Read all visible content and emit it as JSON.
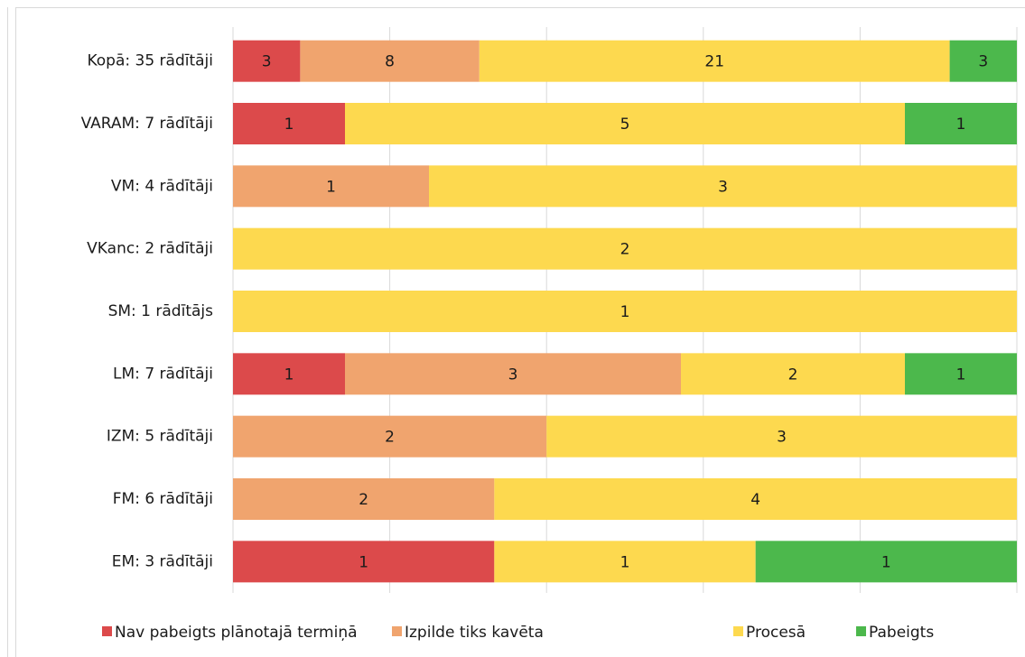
{
  "chart_data": {
    "type": "stacked_bar_100",
    "categories": [
      "Kopā: 35 rādītāji",
      "VARAM: 7 rādītāji",
      "VM: 4 rādītāji",
      "VKanc: 2 rādītāji",
      "SM: 1 rādītājs",
      "LM: 7 rādītāji",
      "IZM: 5 rādītāji",
      "FM: 6 rādītāji",
      "EM: 3 rādītāji"
    ],
    "series": [
      {
        "name": "Nav pabeigts plānotajā termiņā",
        "color": "#dc4a4b",
        "values": [
          3,
          1,
          0,
          0,
          0,
          1,
          0,
          0,
          1
        ]
      },
      {
        "name": "Izpilde tiks kavēta",
        "color": "#f0a46e",
        "values": [
          8,
          0,
          1,
          0,
          0,
          3,
          2,
          2,
          0
        ]
      },
      {
        "name": "Procesā",
        "color": "#fdd94f",
        "values": [
          21,
          5,
          3,
          2,
          1,
          2,
          3,
          4,
          1
        ]
      },
      {
        "name": "Pabeigts",
        "color": "#4cb84c",
        "values": [
          3,
          1,
          0,
          0,
          0,
          1,
          0,
          0,
          1
        ]
      }
    ],
    "xlim": [
      0,
      100
    ],
    "xticks": [
      0,
      20,
      40,
      60,
      80,
      100
    ],
    "grid": true,
    "legend": "bottom"
  }
}
